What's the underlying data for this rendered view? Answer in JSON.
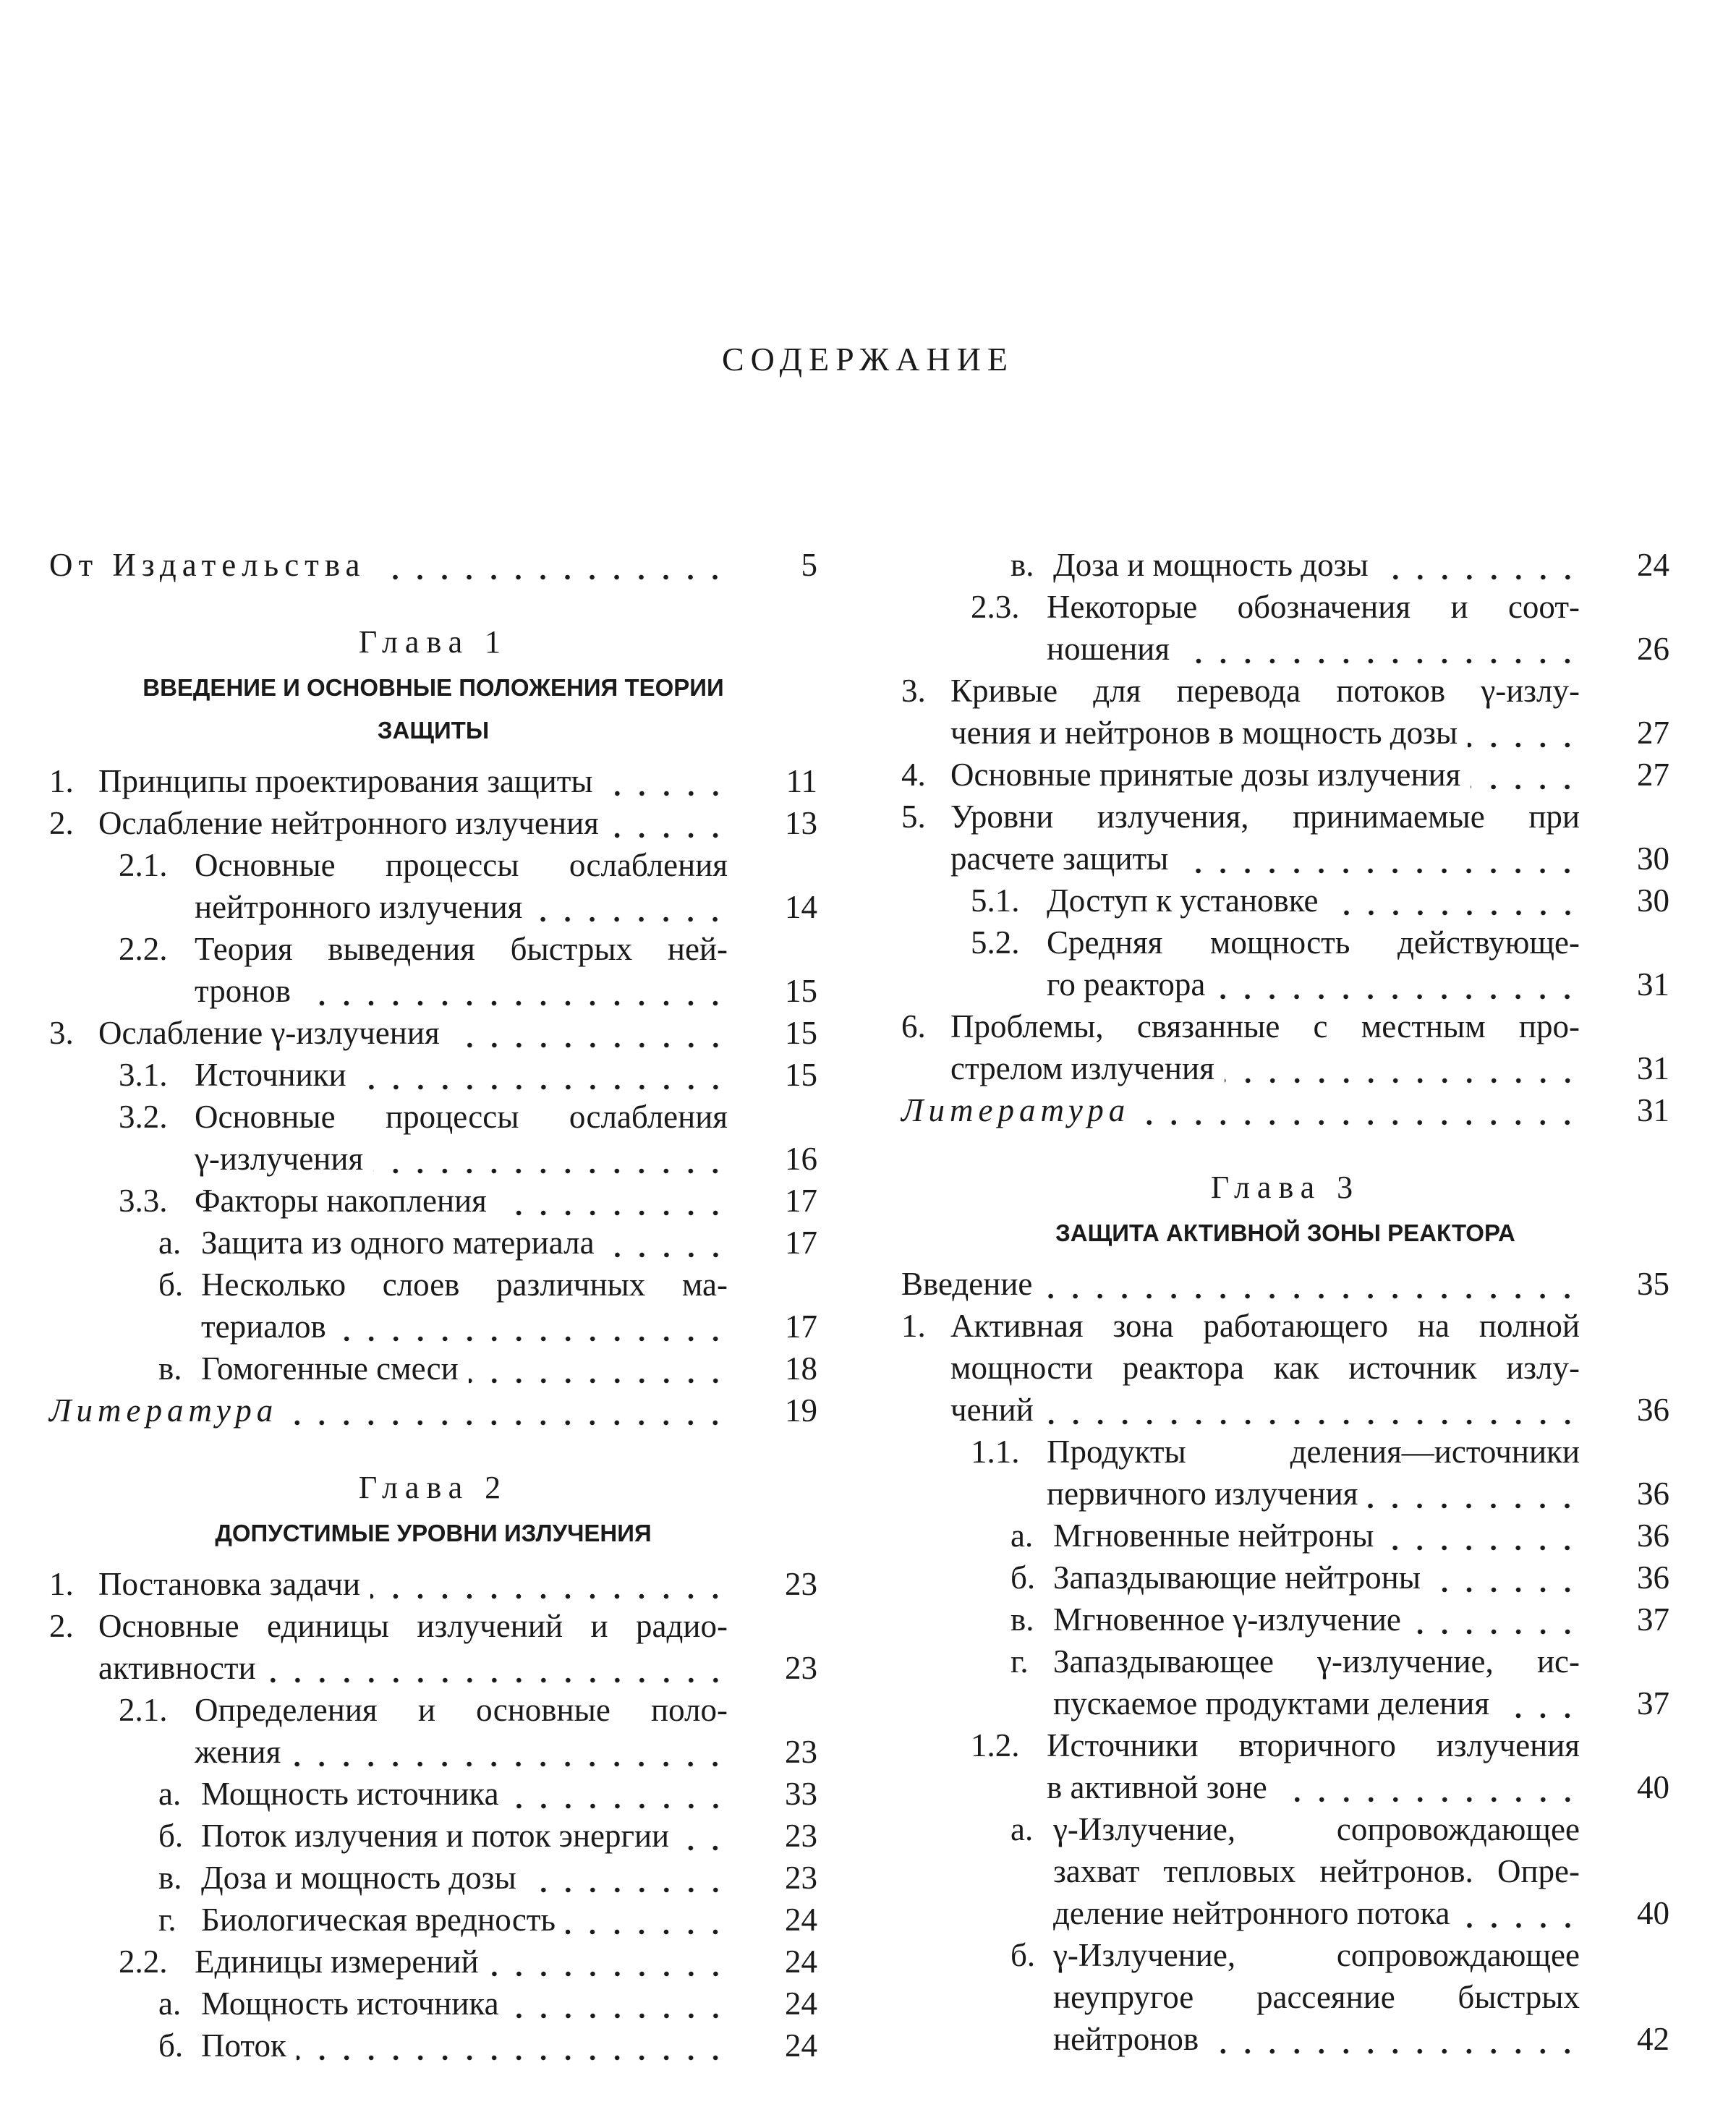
{
  "title": "СОДЕРЖАНИЕ",
  "columns": [
    {
      "blocks": [
        {
          "entries": [
            {
              "lines": [
                "От Издательства"
              ],
              "page": 5,
              "emphasis": "spaced"
            }
          ]
        },
        {
          "chapter": "Глава 1",
          "heading": [
            "ВВЕДЕНИЕ И ОСНОВНЫЕ ПОЛОЖЕНИЯ ТЕОРИИ",
            "ЗАЩИТЫ"
          ]
        },
        {
          "entries": [
            {
              "num": "1.",
              "lines": [
                "Принципы проектирования защиты"
              ],
              "page": 11
            },
            {
              "num": "2.",
              "lines": [
                "Ослабление нейтронного излучения"
              ],
              "page": 13
            },
            {
              "num": "2.1.",
              "lines": [
                "Основные процессы ослабления",
                "нейтронного излучения"
              ],
              "page": 14
            },
            {
              "num": "2.2.",
              "lines": [
                "Теория выведения быстрых ней-",
                "тронов"
              ],
              "page": 15
            },
            {
              "num": "3.",
              "lines": [
                "Ослабление γ-излучения"
              ],
              "page": 15
            },
            {
              "num": "3.1.",
              "lines": [
                "Источники"
              ],
              "page": 15
            },
            {
              "num": "3.2.",
              "lines": [
                "Основные процессы ослабления",
                "γ-излучения"
              ],
              "page": 16
            },
            {
              "num": "3.3.",
              "lines": [
                "Факторы накопления"
              ],
              "page": 17
            },
            {
              "num": "а.",
              "lines": [
                "Защита из одного материала"
              ],
              "page": 17
            },
            {
              "num": "б.",
              "lines": [
                "Несколько слоев различных ма-",
                "териалов"
              ],
              "page": 17
            },
            {
              "num": "в.",
              "lines": [
                "Гомогенные смеси"
              ],
              "page": 18
            },
            {
              "lines": [
                "Литература"
              ],
              "page": 19,
              "emphasis": "italic"
            }
          ]
        },
        {
          "chapter": "Глава 2",
          "heading": [
            "ДОПУСТИМЫЕ УРОВНИ ИЗЛУЧЕНИЯ"
          ]
        },
        {
          "entries": [
            {
              "num": "1.",
              "lines": [
                "Постановка задачи"
              ],
              "page": 23
            },
            {
              "num": "2.",
              "lines": [
                "Основные единицы излучений и радио-",
                "активности"
              ],
              "page": 23
            },
            {
              "num": "2.1.",
              "lines": [
                "Определения и основные поло-",
                "жения"
              ],
              "page": 23
            },
            {
              "num": "а.",
              "lines": [
                "Мощность источника"
              ],
              "page": 33
            },
            {
              "num": "б.",
              "lines": [
                "Поток излучения и поток энергии"
              ],
              "page": 23
            },
            {
              "num": "в.",
              "lines": [
                "Доза и мощность дозы"
              ],
              "page": 23
            },
            {
              "num": "г.",
              "lines": [
                "Биологическая вредность"
              ],
              "page": 24
            },
            {
              "num": "2.2.",
              "lines": [
                "Единицы измерений"
              ],
              "page": 24
            },
            {
              "num": "а.",
              "lines": [
                "Мощность источника"
              ],
              "page": 24
            },
            {
              "num": "б.",
              "lines": [
                "Поток"
              ],
              "page": 24
            }
          ]
        }
      ]
    },
    {
      "blocks": [
        {
          "entries": [
            {
              "num": "в.",
              "lines": [
                "Доза и мощность дозы"
              ],
              "page": 24
            },
            {
              "num": "2.3.",
              "lines": [
                "Некоторые обозначения и соот-",
                "ношения"
              ],
              "page": 26
            },
            {
              "num": "3.",
              "lines": [
                "Кривые для перевода потоков γ-излу-",
                "чения и нейтронов в мощность дозы"
              ],
              "page": 27
            },
            {
              "num": "4.",
              "lines": [
                "Основные принятые дозы излучения"
              ],
              "page": 27
            },
            {
              "num": "5.",
              "lines": [
                "Уровни излучения, принимаемые при",
                "расчете защиты"
              ],
              "page": 30
            },
            {
              "num": "5.1.",
              "lines": [
                "Доступ к установке"
              ],
              "page": 30
            },
            {
              "num": "5.2.",
              "lines": [
                "Средняя мощность действующе-",
                "го реактора"
              ],
              "page": 31
            },
            {
              "num": "6.",
              "lines": [
                "Проблемы, связанные с местным про-",
                "стрелом излучения"
              ],
              "page": 31
            },
            {
              "lines": [
                "Литература"
              ],
              "page": 31,
              "emphasis": "italic"
            }
          ]
        },
        {
          "chapter": "Глава 3",
          "heading": [
            "ЗАЩИТА АКТИВНОЙ ЗОНЫ РЕАКТОРА"
          ]
        },
        {
          "entries": [
            {
              "lines": [
                "Введение"
              ],
              "page": 35
            },
            {
              "num": "1.",
              "lines": [
                "Активная зона работающего на полной",
                "мощности реактора как источник излу-",
                "чений"
              ],
              "page": 36
            },
            {
              "num": "1.1.",
              "lines": [
                "Продукты деления—источники",
                "первичного излучения"
              ],
              "page": 36
            },
            {
              "num": "а.",
              "lines": [
                "Мгновенные нейтроны"
              ],
              "page": 36
            },
            {
              "num": "б.",
              "lines": [
                "Запаздывающие нейтроны"
              ],
              "page": 36
            },
            {
              "num": "в.",
              "lines": [
                "Мгновенное γ-излучение"
              ],
              "page": 37
            },
            {
              "num": "г.",
              "lines": [
                "Запаздывающее γ-излучение, ис-",
                "пускаемое продуктами деления"
              ],
              "page": 37
            },
            {
              "num": "1.2.",
              "lines": [
                "Источники вторичного излучения",
                "в активной зоне"
              ],
              "page": 40
            },
            {
              "num": "а.",
              "lines": [
                "γ-Излучение, сопровождающее",
                "захват тепловых нейтронов. Опре-",
                "деление нейтронного потока"
              ],
              "page": 40
            },
            {
              "num": "б.",
              "lines": [
                "γ-Излучение, сопровождающее",
                "неупругое рассеяние быстрых",
                "нейтронов"
              ],
              "page": 42
            }
          ]
        }
      ]
    }
  ]
}
